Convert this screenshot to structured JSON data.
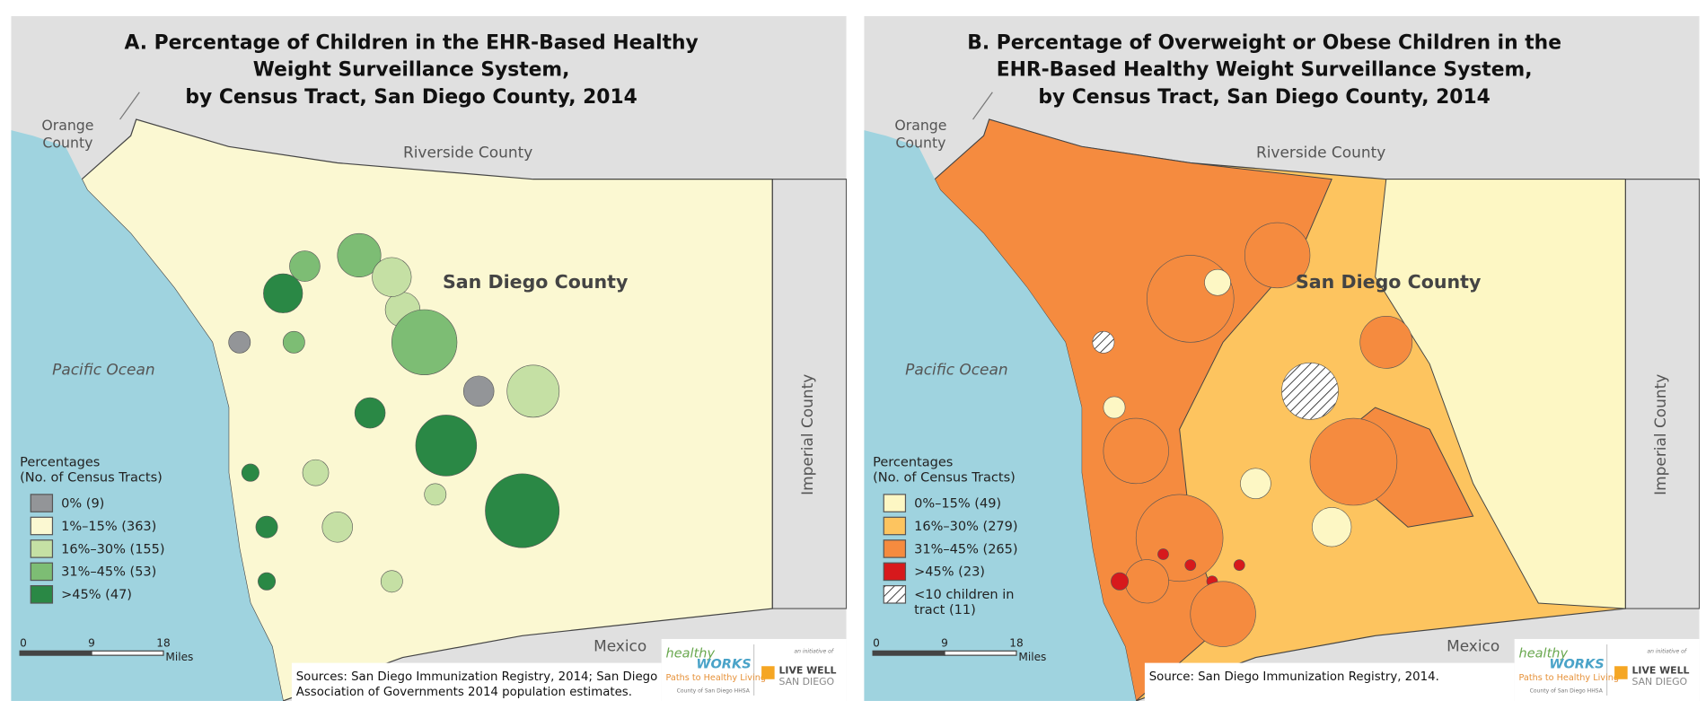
{
  "panels": [
    {
      "title": [
        "A. Percentage of Children in the EHR-Based Healthy",
        "Weight Surveillance System,",
        "by Census Tract, San Diego County, 2014"
      ],
      "labels": {
        "orange": [
          "Orange",
          "County"
        ],
        "riverside": "Riverside County",
        "county": "San Diego County",
        "ocean": "Pacific Ocean",
        "imperial": "Imperial County",
        "mexico": "Mexico"
      },
      "legend": {
        "title": [
          "Percentages",
          "(No. of Census Tracts)"
        ],
        "items": [
          {
            "label": [
              "0% (9)"
            ],
            "color": "#939598"
          },
          {
            "label": [
              "1%–15% (363)"
            ],
            "color": "#fbf8d2"
          },
          {
            "label": [
              "16%–30% (155)"
            ],
            "color": "#c5e0a4"
          },
          {
            "label": [
              "31%–45% (53)"
            ],
            "color": "#7dbd74"
          },
          {
            "label": [
              ">45% (47)"
            ],
            "color": "#2a8845"
          }
        ]
      },
      "scale": {
        "ticks": [
          "0",
          "9",
          "18"
        ],
        "unit": "Miles"
      },
      "source": [
        "Sources: San Diego Immunization Registry, 2014; San Diego",
        "Association of Governments 2014 population estimates."
      ],
      "logo": {
        "name1": "healthy",
        "name2": "WORKS",
        "tagline": "Paths to Healthy Living",
        "org": "County of San Diego HHSA",
        "initiative": "an initiative of",
        "lw1": "LIVE WELL",
        "lw2": "SAN DIEGO"
      }
    },
    {
      "title": [
        "B. Percentage of Overweight or Obese Children in the",
        "EHR-Based Healthy Weight Surveillance System,",
        "by Census Tract, San Diego County, 2014"
      ],
      "labels": {
        "orange": [
          "Orange",
          "County"
        ],
        "riverside": "Riverside County",
        "county": "San Diego County",
        "ocean": "Pacific Ocean",
        "imperial": "Imperial County",
        "mexico": "Mexico"
      },
      "legend": {
        "title": [
          "Percentages",
          "(No. of Census Tracts)"
        ],
        "items": [
          {
            "label": [
              "0%–15% (49)"
            ],
            "color": "#fdf7c4"
          },
          {
            "label": [
              "16%–30% (279)"
            ],
            "color": "#fdc45f"
          },
          {
            "label": [
              "31%–45% (265)"
            ],
            "color": "#f58b3f"
          },
          {
            "label": [
              ">45% (23)"
            ],
            "color": "#d7191c"
          },
          {
            "label": [
              "<10 children in",
              "tract (11)"
            ],
            "color": "hatch"
          }
        ]
      },
      "scale": {
        "ticks": [
          "0",
          "9",
          "18"
        ],
        "unit": "Miles"
      },
      "source": [
        "Source: San Diego Immunization Registry, 2014."
      ],
      "logo": {
        "name1": "healthy",
        "name2": "WORKS",
        "tagline": "Paths to Healthy Living",
        "org": "County of San Diego HHSA",
        "initiative": "an initiative of",
        "lw1": "LIVE WELL",
        "lw2": "SAN DIEGO"
      }
    }
  ]
}
